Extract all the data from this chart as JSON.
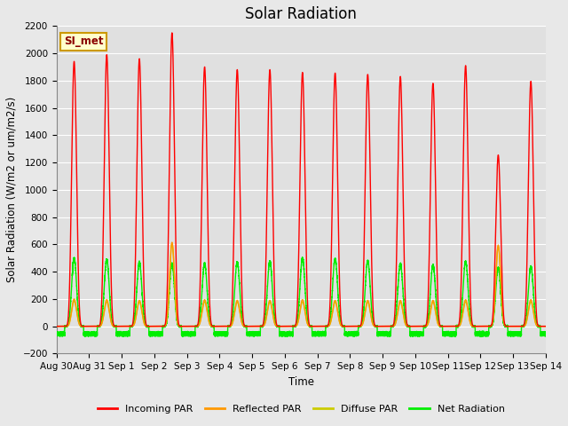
{
  "title": "Solar Radiation",
  "xlabel": "Time",
  "ylabel": "Solar Radiation (W/m2 or um/m2/s)",
  "ylim": [
    -200,
    2200
  ],
  "yticks": [
    -200,
    0,
    200,
    400,
    600,
    800,
    1000,
    1200,
    1400,
    1600,
    1800,
    2000,
    2200
  ],
  "bg_color": "#e8e8e8",
  "plot_bg_color": "#e0e0e0",
  "legend_label": "SI_met",
  "legend_bg": "#ffffcc",
  "legend_border": "#cc9900",
  "series_colors": {
    "incoming": "#ff0000",
    "reflected": "#ff9900",
    "diffuse": "#cccc00",
    "net": "#00ee00"
  },
  "x_tick_labels": [
    "Aug 30",
    "Aug 31",
    "Sep 1",
    "Sep 2",
    "Sep 3",
    "Sep 4",
    "Sep 5",
    "Sep 6",
    "Sep 7",
    "Sep 8",
    "Sep 9",
    "Sep 10",
    "Sep 11",
    "Sep 12",
    "Sep 13",
    "Sep 14"
  ],
  "n_days": 15,
  "day_peaks_incoming": [
    1940,
    1990,
    1960,
    2150,
    1900,
    1880,
    1880,
    1860,
    1855,
    1845,
    1830,
    1780,
    1910,
    1255,
    1795
  ],
  "day_peaks_net": [
    500,
    490,
    470,
    460,
    460,
    470,
    475,
    500,
    495,
    480,
    460,
    450,
    475,
    430,
    440
  ],
  "day_peaks_reflected": [
    200,
    195,
    190,
    615,
    195,
    190,
    190,
    195,
    190,
    190,
    190,
    190,
    195,
    595,
    195
  ],
  "day_peaks_diffuse": [
    185,
    180,
    180,
    605,
    180,
    178,
    178,
    180,
    178,
    178,
    178,
    178,
    180,
    585,
    180
  ],
  "night_net": -70,
  "line_width": 1.0,
  "title_fontsize": 12,
  "tick_fontsize": 7.5,
  "label_fontsize": 8.5,
  "pts_per_day": 1440,
  "peak_sharpness": 6.0
}
